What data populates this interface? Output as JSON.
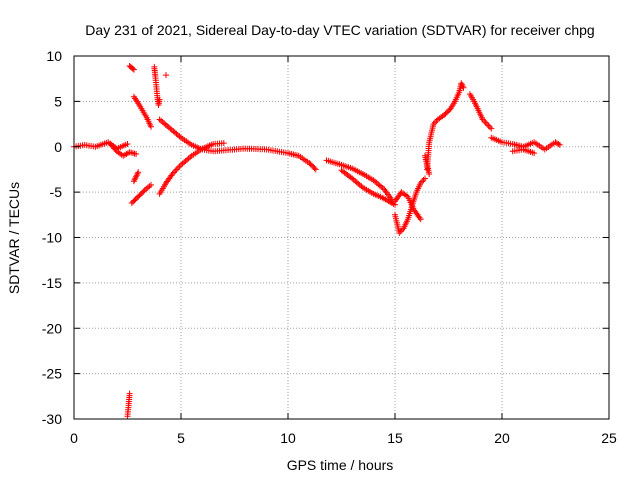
{
  "chart_data": {
    "type": "scatter",
    "title": "Day 231 of 2021, Sidereal Day-to-day VTEC variation (SDTVAR) for receiver chpg",
    "xlabel": "GPS time / hours",
    "ylabel": "SDTVAR / TECUs",
    "xlim": [
      0,
      25
    ],
    "ylim": [
      -30,
      10
    ],
    "x_ticks": [
      0,
      5,
      10,
      15,
      20,
      25
    ],
    "y_ticks": [
      10,
      5,
      0,
      -5,
      -10,
      -15,
      -20,
      -25,
      -30
    ],
    "grid": true,
    "marker": "+",
    "series_color": "#ff0000",
    "segments": [
      {
        "x": [
          0.0,
          0.5,
          1.0,
          1.6,
          2.0,
          2.5
        ],
        "y": [
          0.0,
          0.2,
          0.0,
          0.5,
          -0.2,
          0.3
        ]
      },
      {
        "x": [
          1.7,
          2.0,
          2.3,
          2.6,
          2.9
        ],
        "y": [
          0.3,
          -0.5,
          -1.0,
          -0.6,
          -0.8
        ]
      },
      {
        "x": [
          2.6,
          2.7,
          2.8
        ],
        "y": [
          8.9,
          8.7,
          8.5
        ]
      },
      {
        "x": [
          2.8,
          3.0,
          3.2,
          3.4,
          3.6
        ],
        "y": [
          5.5,
          4.8,
          4.0,
          3.2,
          2.2
        ]
      },
      {
        "x": [
          2.7,
          3.0,
          3.3,
          3.6
        ],
        "y": [
          -6.2,
          -5.5,
          -4.8,
          -4.2
        ]
      },
      {
        "x": [
          2.8,
          2.9,
          3.0
        ],
        "y": [
          -3.8,
          -3.3,
          -2.8
        ]
      },
      {
        "x": [
          3.75,
          3.8,
          3.85,
          3.9,
          3.95,
          4.0
        ],
        "y": [
          8.8,
          7.8,
          6.6,
          5.4,
          4.6,
          5.2
        ]
      },
      {
        "x": [
          4.3
        ],
        "y": [
          7.9
        ]
      },
      {
        "x": [
          4.0,
          4.5,
          5.0,
          5.5,
          6.0,
          6.5,
          7.0,
          8.0,
          9.0,
          10.0,
          10.5,
          11.0,
          11.3
        ],
        "y": [
          3.0,
          2.0,
          1.0,
          0.2,
          -0.3,
          -0.5,
          -0.4,
          -0.2,
          -0.3,
          -0.7,
          -1.0,
          -1.8,
          -2.5
        ]
      },
      {
        "x": [
          4.0,
          4.3,
          4.6,
          5.0,
          5.5,
          6.0,
          6.5,
          7.0
        ],
        "y": [
          -5.2,
          -4.0,
          -3.0,
          -2.0,
          -1.0,
          -0.2,
          0.3,
          0.4
        ]
      },
      {
        "x": [
          11.8,
          12.5,
          13.0,
          13.5,
          14.0,
          14.5,
          14.9
        ],
        "y": [
          -1.5,
          -2.0,
          -2.4,
          -3.0,
          -3.7,
          -4.7,
          -6.0
        ]
      },
      {
        "x": [
          12.5,
          13.0,
          13.5,
          14.0,
          14.4,
          14.7,
          15.0
        ],
        "y": [
          -2.6,
          -3.5,
          -4.5,
          -5.2,
          -5.6,
          -6.0,
          -6.4
        ]
      },
      {
        "x": [
          15.0,
          15.2,
          15.4,
          15.6,
          15.8,
          16.0,
          16.2,
          16.4
        ],
        "y": [
          -7.5,
          -9.5,
          -9.0,
          -8.0,
          -6.5,
          -5.0,
          -4.0,
          -3.5
        ]
      },
      {
        "x": [
          15.0,
          15.3,
          15.6,
          15.9,
          16.2
        ],
        "y": [
          -6.0,
          -5.0,
          -5.5,
          -7.0,
          -8.0
        ]
      },
      {
        "x": [
          16.4,
          16.5,
          16.6
        ],
        "y": [
          -1.0,
          -2.0,
          -3.0
        ]
      },
      {
        "x": [
          16.5,
          16.6,
          16.8,
          17.0,
          17.3,
          17.6,
          17.8,
          18.0,
          18.1,
          18.2
        ],
        "y": [
          -2.5,
          0.5,
          2.5,
          3.0,
          3.5,
          4.2,
          5.0,
          6.0,
          7.0,
          6.5
        ]
      },
      {
        "x": [
          18.5,
          18.7,
          18.9,
          19.1,
          19.3,
          19.5
        ],
        "y": [
          5.8,
          5.0,
          4.0,
          3.0,
          2.5,
          2.0
        ]
      },
      {
        "x": [
          19.5,
          20.0,
          20.5,
          21.0,
          21.5,
          22.0,
          22.5,
          22.7
        ],
        "y": [
          1.0,
          0.5,
          0.3,
          0.0,
          0.5,
          -0.3,
          0.5,
          0.2
        ]
      },
      {
        "x": [
          20.5,
          21.0,
          21.5
        ],
        "y": [
          -0.5,
          -0.3,
          -0.7
        ]
      },
      {
        "x": [
          2.5,
          2.55,
          2.6
        ],
        "y": [
          -29.7,
          -28.5,
          -27.2
        ]
      }
    ]
  }
}
